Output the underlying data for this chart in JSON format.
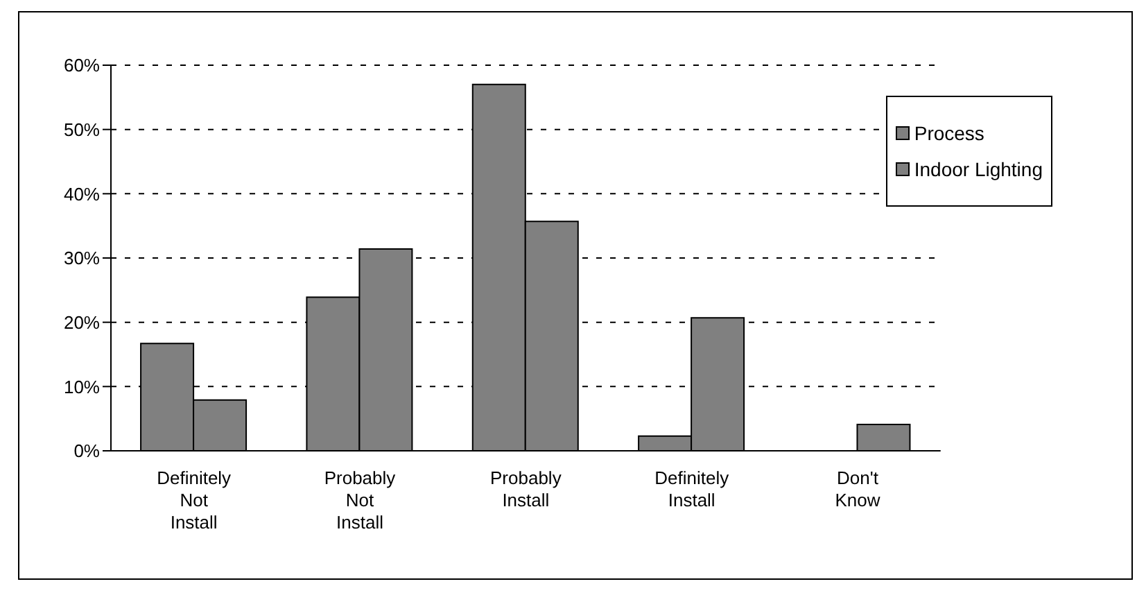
{
  "chart_data": {
    "type": "bar",
    "categories": [
      "Definitely Not Install",
      "Probably Not Install",
      "Probably Install",
      "Definitely Install",
      "Don't Know"
    ],
    "series": [
      {
        "name": "Process",
        "color": "#808080",
        "values": [
          16.7,
          23.9,
          57.0,
          2.3,
          null
        ]
      },
      {
        "name": "Indoor Lighting",
        "color": "#808080",
        "values": [
          7.9,
          31.4,
          35.7,
          20.7,
          4.1
        ]
      }
    ],
    "ylim": [
      0,
      60
    ],
    "yticks": [
      {
        "value": 0,
        "label": "0%"
      },
      {
        "value": 10,
        "label": "10%"
      },
      {
        "value": 20,
        "label": "20%"
      },
      {
        "value": 30,
        "label": "30%"
      },
      {
        "value": 40,
        "label": "40%"
      },
      {
        "value": 50,
        "label": "50%"
      },
      {
        "value": 60,
        "label": "60%"
      }
    ],
    "grid": "y",
    "legend": "top right"
  }
}
